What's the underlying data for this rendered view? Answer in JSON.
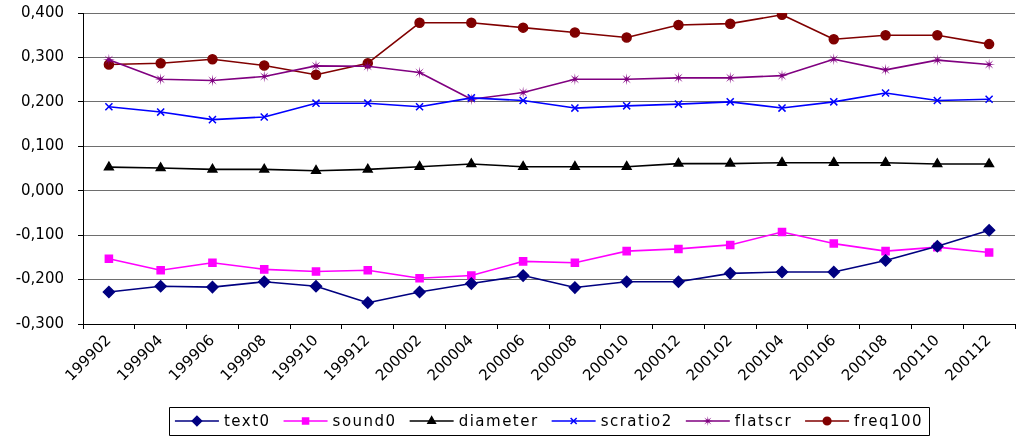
{
  "chart_data": {
    "type": "line",
    "categories": [
      "199902",
      "199904",
      "199906",
      "199908",
      "199910",
      "199912",
      "200002",
      "200004",
      "200006",
      "200008",
      "200010",
      "200012",
      "200102",
      "200104",
      "200106",
      "200108",
      "200110",
      "200112"
    ],
    "series": [
      {
        "name": "text0",
        "color": "#000080",
        "marker": "diamond",
        "values": [
          -0.228,
          -0.215,
          -0.217,
          -0.205,
          -0.215,
          -0.252,
          -0.228,
          -0.209,
          -0.191,
          -0.218,
          -0.205,
          -0.205,
          -0.186,
          -0.183,
          -0.183,
          -0.157,
          -0.125,
          -0.089
        ]
      },
      {
        "name": "sound0",
        "color": "#ff00ff",
        "marker": "square",
        "values": [
          -0.153,
          -0.179,
          -0.162,
          -0.177,
          -0.182,
          -0.179,
          -0.197,
          -0.191,
          -0.159,
          -0.162,
          -0.136,
          -0.131,
          -0.122,
          -0.093,
          -0.119,
          -0.136,
          -0.127,
          -0.139
        ]
      },
      {
        "name": "diameter",
        "color": "#000000",
        "marker": "triangle",
        "values": [
          0.053,
          0.051,
          0.048,
          0.048,
          0.045,
          0.048,
          0.054,
          0.06,
          0.054,
          0.054,
          0.054,
          0.061,
          0.061,
          0.063,
          0.063,
          0.063,
          0.06,
          0.06
        ]
      },
      {
        "name": "scratio2",
        "color": "#0000ff",
        "marker": "cross",
        "values": [
          0.189,
          0.177,
          0.16,
          0.166,
          0.197,
          0.197,
          0.189,
          0.209,
          0.203,
          0.186,
          0.191,
          0.195,
          0.2,
          0.186,
          0.2,
          0.22,
          0.203,
          0.206
        ]
      },
      {
        "name": "flatscr",
        "color": "#800080",
        "marker": "star",
        "values": [
          0.295,
          0.251,
          0.248,
          0.257,
          0.281,
          0.28,
          0.266,
          0.206,
          0.221,
          0.251,
          0.251,
          0.254,
          0.254,
          0.259,
          0.296,
          0.272,
          0.294,
          0.284
        ]
      },
      {
        "name": "freq100",
        "color": "#800000",
        "marker": "circle",
        "values": [
          0.284,
          0.287,
          0.296,
          0.282,
          0.261,
          0.287,
          0.378,
          0.378,
          0.367,
          0.356,
          0.345,
          0.373,
          0.376,
          0.396,
          0.341,
          0.35,
          0.35,
          0.33
        ]
      }
    ],
    "ylim": [
      -0.3,
      0.4
    ],
    "yticks": [
      {
        "value": -0.3,
        "label": "-0,300"
      },
      {
        "value": -0.2,
        "label": "-0,200"
      },
      {
        "value": -0.1,
        "label": "-0,100"
      },
      {
        "value": 0,
        "label": "0,000"
      },
      {
        "value": 0.1,
        "label": "0,100"
      },
      {
        "value": 0.2,
        "label": "0,200"
      },
      {
        "value": 0.3,
        "label": "0,300"
      },
      {
        "value": 0.4,
        "label": "0,400"
      }
    ],
    "grid": "y",
    "legend": "bottom"
  }
}
